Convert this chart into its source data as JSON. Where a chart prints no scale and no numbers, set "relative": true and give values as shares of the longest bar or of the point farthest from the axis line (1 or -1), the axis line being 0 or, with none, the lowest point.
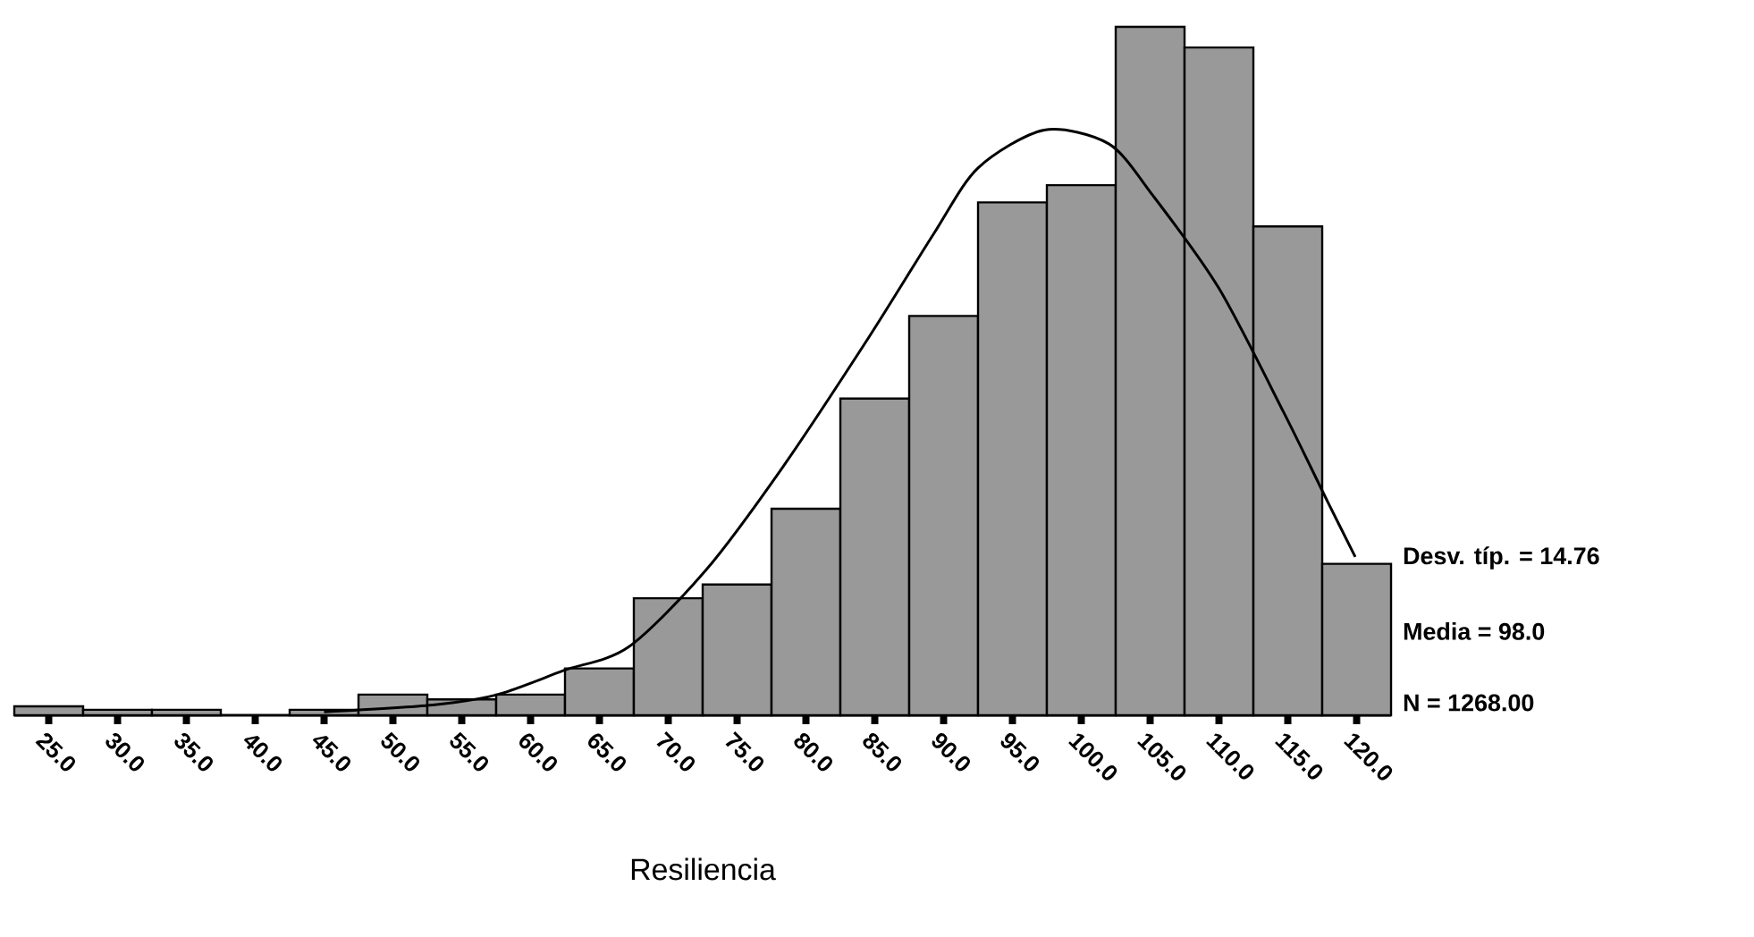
{
  "chart_data": {
    "type": "histogram",
    "relative": true,
    "xlabel": "Resiliencia",
    "bins": [
      22.5,
      27.5,
      32.5,
      37.5,
      42.5,
      47.5,
      52.5,
      57.5,
      62.5,
      67.5,
      72.5,
      77.5,
      82.5,
      87.5,
      92.5,
      97.5,
      102.5,
      107.5,
      112.5,
      117.5,
      122.5
    ],
    "values": [
      0.013,
      0.008,
      0.008,
      null,
      0.008,
      0.03,
      0.023,
      0.03,
      0.068,
      0.17,
      0.19,
      0.3,
      0.46,
      0.58,
      0.745,
      0.77,
      1,
      0.97,
      0.71,
      0.22
    ],
    "color": "#999999",
    "series": [
      {
        "type": "line",
        "color": "#000000",
        "x": [
          45,
          52.9,
          57.6,
          62.4,
          67.1,
          72.7,
          78.3,
          84.6,
          89.3,
          92.5,
          97.3,
          102,
          105.2,
          110,
          114.7,
          117.9,
          119.9
        ],
        "values": [
          0.005,
          0.015,
          0.03,
          0.065,
          0.099,
          0.21,
          0.36,
          0.55,
          0.7,
          0.795,
          0.85,
          0.83,
          0.755,
          0.62,
          0.44,
          0.31,
          0.23
        ]
      }
    ],
    "xlim": [
      22.5,
      122.5
    ],
    "xticks": [
      {
        "value": 25,
        "label": "25.0"
      },
      {
        "value": 30,
        "label": "30.0"
      },
      {
        "value": 35,
        "label": "35.0"
      },
      {
        "value": 40,
        "label": "40.0"
      },
      {
        "value": 45,
        "label": "45.0"
      },
      {
        "value": 50,
        "label": "50.0"
      },
      {
        "value": 55,
        "label": "55.0"
      },
      {
        "value": 60,
        "label": "60.0"
      },
      {
        "value": 65,
        "label": "65.0"
      },
      {
        "value": 70,
        "label": "70.0"
      },
      {
        "value": 75,
        "label": "75.0"
      },
      {
        "value": 80,
        "label": "80.0"
      },
      {
        "value": 85,
        "label": "85.0"
      },
      {
        "value": 90,
        "label": "90.0"
      },
      {
        "value": 95,
        "label": "95.0"
      },
      {
        "value": 100,
        "label": "100.0"
      },
      {
        "value": 105,
        "label": "105.0"
      },
      {
        "value": 110,
        "label": "110.0"
      },
      {
        "value": 115,
        "label": "115.0"
      },
      {
        "value": 120,
        "label": "120.0"
      }
    ],
    "annotations": [
      "Desv. típ. = 14.76",
      "Media = 98.0",
      "N = 1268.00"
    ]
  }
}
